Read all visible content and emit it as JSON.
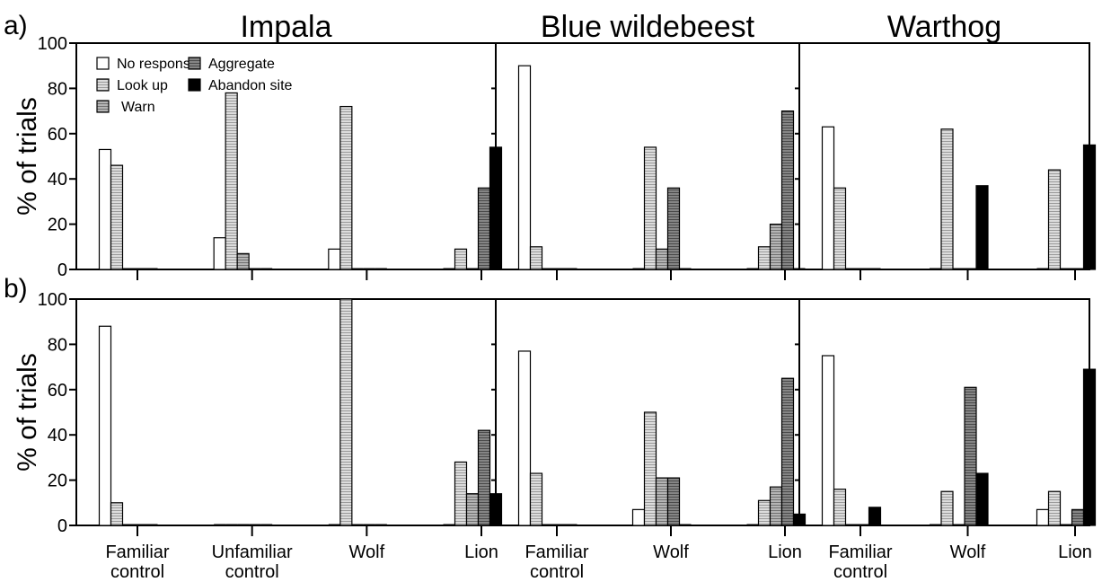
{
  "chart_data": {
    "type": "bar",
    "y_axis": {
      "label": "% of trials",
      "ylim": [
        0,
        100
      ],
      "ticks": [
        0,
        20,
        40,
        60,
        80,
        100
      ]
    },
    "legend": {
      "placement": "top-left of first panel",
      "entries": [
        {
          "name": "No response",
          "color": "#ffffff",
          "pattern": "none"
        },
        {
          "name": "Look up",
          "color": "#d3d3d3",
          "pattern": "horizontal-lines"
        },
        {
          "name": "Warn",
          "color": "#a8a8a8",
          "pattern": "horizontal-lines"
        },
        {
          "name": "Aggregate",
          "color": "#7a7a7a",
          "pattern": "horizontal-lines"
        },
        {
          "name": "Abandon site",
          "color": "#000000",
          "pattern": "none"
        }
      ]
    },
    "rows": [
      {
        "label": "a)",
        "panels": [
          {
            "title": "Impala",
            "categories": [
              "Familiar control",
              "Unfamiliar control",
              "Wolf",
              "Lion"
            ],
            "series": [
              {
                "name": "No response",
                "values": [
                  53,
                  14,
                  9,
                  0
                ]
              },
              {
                "name": "Look up",
                "values": [
                  46,
                  78,
                  72,
                  9
                ]
              },
              {
                "name": "Warn",
                "values": [
                  0,
                  7,
                  0,
                  0
                ]
              },
              {
                "name": "Aggregate",
                "values": [
                  0,
                  0,
                  0,
                  36
                ]
              },
              {
                "name": "Abandon site",
                "values": [
                  0,
                  0,
                  0,
                  54
                ]
              }
            ]
          },
          {
            "title": "Blue wildebeest",
            "categories": [
              "Familiar control",
              "Wolf",
              "Lion"
            ],
            "series": [
              {
                "name": "No response",
                "values": [
                  90,
                  0,
                  0
                ]
              },
              {
                "name": "Look up",
                "values": [
                  10,
                  54,
                  10
                ]
              },
              {
                "name": "Warn",
                "values": [
                  0,
                  9,
                  20
                ]
              },
              {
                "name": "Aggregate",
                "values": [
                  0,
                  36,
                  70
                ]
              },
              {
                "name": "Abandon site",
                "values": [
                  0,
                  0,
                  0
                ]
              }
            ]
          },
          {
            "title": "Warthog",
            "categories": [
              "Familiar control",
              "Wolf",
              "Lion"
            ],
            "series": [
              {
                "name": "No response",
                "values": [
                  63,
                  0,
                  0
                ]
              },
              {
                "name": "Look up",
                "values": [
                  36,
                  62,
                  44
                ]
              },
              {
                "name": "Warn",
                "values": [
                  0,
                  0,
                  0
                ]
              },
              {
                "name": "Aggregate",
                "values": [
                  0,
                  0,
                  0
                ]
              },
              {
                "name": "Abandon site",
                "values": [
                  0,
                  37,
                  55
                ]
              }
            ]
          }
        ]
      },
      {
        "label": "b)",
        "panels": [
          {
            "title": "",
            "categories": [
              "Familiar control",
              "Unfamiliar control",
              "Wolf",
              "Lion"
            ],
            "series": [
              {
                "name": "No response",
                "values": [
                  88,
                  0,
                  0,
                  0
                ]
              },
              {
                "name": "Look up",
                "values": [
                  10,
                  0,
                  100,
                  28
                ]
              },
              {
                "name": "Warn",
                "values": [
                  0,
                  0,
                  0,
                  14
                ]
              },
              {
                "name": "Aggregate",
                "values": [
                  0,
                  0,
                  0,
                  42
                ]
              },
              {
                "name": "Abandon site",
                "values": [
                  0,
                  0,
                  0,
                  14
                ]
              }
            ]
          },
          {
            "title": "",
            "categories": [
              "Familiar control",
              "Wolf",
              "Lion"
            ],
            "series": [
              {
                "name": "No response",
                "values": [
                  77,
                  7,
                  0
                ]
              },
              {
                "name": "Look up",
                "values": [
                  23,
                  50,
                  11
                ]
              },
              {
                "name": "Warn",
                "values": [
                  0,
                  21,
                  17
                ]
              },
              {
                "name": "Aggregate",
                "values": [
                  0,
                  21,
                  65
                ]
              },
              {
                "name": "Abandon site",
                "values": [
                  0,
                  0,
                  5
                ]
              }
            ]
          },
          {
            "title": "",
            "categories": [
              "Familiar control",
              "Wolf",
              "Lion"
            ],
            "series": [
              {
                "name": "No response",
                "values": [
                  75,
                  0,
                  7
                ]
              },
              {
                "name": "Look up",
                "values": [
                  16,
                  15,
                  15
                ]
              },
              {
                "name": "Warn",
                "values": [
                  0,
                  0,
                  0
                ]
              },
              {
                "name": "Aggregate",
                "values": [
                  0,
                  61,
                  7
                ]
              },
              {
                "name": "Abandon site",
                "values": [
                  8,
                  23,
                  69
                ]
              }
            ]
          }
        ]
      }
    ]
  }
}
